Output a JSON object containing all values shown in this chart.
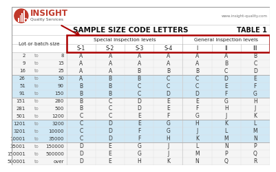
{
  "title": "SAMPLE SIZE CODE LETTERS",
  "table_label": "TABLE 1",
  "website": "www.insight-quality.com",
  "col_headers_special": [
    "S-1",
    "S-2",
    "S-3",
    "S-4"
  ],
  "col_headers_general": [
    "I",
    "II",
    "III"
  ],
  "group_header_special": "Special inspection levels",
  "group_header_general": "General inspection levels",
  "lot_header": "Lot or batch size",
  "rows": [
    [
      "2",
      "to",
      "8",
      "A",
      "A",
      "A",
      "A",
      "A",
      "A",
      "B"
    ],
    [
      "9",
      "to",
      "15",
      "A",
      "A",
      "A",
      "A",
      "A",
      "B",
      "C"
    ],
    [
      "16",
      "to",
      "25",
      "A",
      "A",
      "B",
      "B",
      "B",
      "C",
      "D"
    ],
    [
      "26",
      "to",
      "50",
      "A",
      "B",
      "B",
      "C",
      "C",
      "D",
      "E"
    ],
    [
      "51",
      "to",
      "90",
      "B",
      "B",
      "C",
      "C",
      "C",
      "E",
      "F"
    ],
    [
      "91",
      "to",
      "150",
      "B",
      "B",
      "C",
      "D",
      "D",
      "F",
      "G"
    ],
    [
      "151",
      "to",
      "280",
      "B",
      "C",
      "D",
      "E",
      "E",
      "G",
      "H"
    ],
    [
      "281",
      "to",
      "500",
      "B",
      "C",
      "D",
      "E",
      "F",
      "H",
      "J"
    ],
    [
      "501",
      "to",
      "1200",
      "C",
      "C",
      "E",
      "F",
      "G",
      "J",
      "K"
    ],
    [
      "1201",
      "to",
      "3200",
      "C",
      "D",
      "E",
      "G",
      "H",
      "K",
      "L"
    ],
    [
      "3201",
      "to",
      "10000",
      "C",
      "D",
      "F",
      "G",
      "J",
      "L",
      "M"
    ],
    [
      "10001",
      "to",
      "35000",
      "C",
      "D",
      "F",
      "H",
      "K",
      "M",
      "N"
    ],
    [
      "35001",
      "to",
      "150000",
      "D",
      "E",
      "G",
      "J",
      "L",
      "N",
      "P"
    ],
    [
      "150001",
      "to",
      "500000",
      "D",
      "E",
      "G",
      "J",
      "M",
      "P",
      "Q"
    ],
    [
      "500001",
      "to",
      "over",
      "D",
      "E",
      "H",
      "K",
      "N",
      "Q",
      "R"
    ]
  ],
  "group_bg_white": "#f5f5f5",
  "group_bg_blue": "#d0e8f5",
  "border_color": "#aa0000",
  "header_line_color": "#aaaaaa",
  "row_line_color": "#cccccc"
}
